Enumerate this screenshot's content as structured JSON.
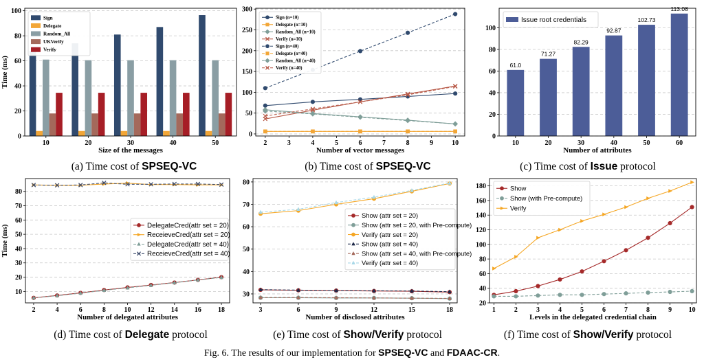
{
  "chart_data": [
    {
      "type": "bar",
      "categories": [
        "10",
        "20",
        "30",
        "40",
        "50"
      ],
      "series": [
        {
          "name": "Sign",
          "color": "#304a6e",
          "values": [
            68,
            74,
            81,
            87,
            96.5
          ]
        },
        {
          "name": "Delegate",
          "color": "#f2a637",
          "values": [
            4,
            4,
            4,
            4,
            4
          ]
        },
        {
          "name": "Random_All",
          "color": "#8a9ea4",
          "values": [
            61,
            60.5,
            60.5,
            60.5,
            60.5
          ]
        },
        {
          "name": "UKVerify",
          "color": "#a4695b",
          "values": [
            18,
            18,
            18,
            18,
            18
          ]
        },
        {
          "name": "Verify",
          "color": "#a61e26",
          "values": [
            34.5,
            34.5,
            34.5,
            34.5,
            34.5
          ]
        }
      ],
      "xlabel": "Size of the messages",
      "ylabel": "Time (ms)",
      "yticks": [
        0,
        20,
        40,
        60,
        80,
        100
      ],
      "ylim": [
        0,
        102
      ],
      "grid": true,
      "legend": "top-left"
    },
    {
      "type": "line",
      "x": [
        2,
        4,
        6,
        8,
        10
      ],
      "series": [
        {
          "name": "Sign (n=10)",
          "color": "#304a6e",
          "marker": "circle",
          "dash": false,
          "values": [
            68,
            77,
            83,
            90,
            97
          ]
        },
        {
          "name": "Delegate (n=10)",
          "color": "#f2a637",
          "marker": "square",
          "dash": false,
          "values": [
            6,
            6,
            6,
            6,
            6
          ]
        },
        {
          "name": "Random_All (n=10)",
          "color": "#7f9e98",
          "marker": "diamond",
          "dash": false,
          "values": [
            58,
            49,
            41,
            33,
            24
          ]
        },
        {
          "name": "Verify (n=10)",
          "color": "#b85a48",
          "marker": "x",
          "dash": false,
          "values": [
            36,
            57,
            77,
            96,
            115
          ]
        },
        {
          "name": "Sign (n=40)",
          "color": "#304a6e",
          "marker": "circle",
          "dash": true,
          "values": [
            110,
            154,
            199,
            243,
            288
          ]
        },
        {
          "name": "Delegate (n=40)",
          "color": "#f2a637",
          "marker": "square",
          "dash": true,
          "values": [
            6,
            6,
            6,
            6,
            6
          ]
        },
        {
          "name": "Random_All (n=40)",
          "color": "#7f9e98",
          "marker": "diamond",
          "dash": true,
          "values": [
            55,
            48,
            40,
            32,
            24
          ]
        },
        {
          "name": "Verify (n=40)",
          "color": "#b85a48",
          "marker": "x",
          "dash": true,
          "values": [
            43,
            60,
            77,
            94,
            114
          ]
        }
      ],
      "xticks": [
        2,
        3,
        4,
        5,
        6,
        7,
        8,
        9,
        10
      ],
      "yticks": [
        0,
        50,
        100,
        150,
        200,
        250,
        300
      ],
      "xlim": [
        1.6,
        10.4
      ],
      "ylim": [
        -5,
        302
      ],
      "xlabel": "Number of vector messages",
      "ylabel": "",
      "grid": true,
      "legend": "top-left"
    },
    {
      "type": "bar",
      "categories": [
        "10",
        "20",
        "30",
        "40",
        "50",
        "60"
      ],
      "series": [
        {
          "name": "Issue root credentials",
          "color": "#4c5d98",
          "values": [
            61.0,
            71.27,
            82.29,
            92.87,
            102.73,
            113.08
          ]
        }
      ],
      "data_labels": [
        "61.0",
        "71.27",
        "82.29",
        "92.87",
        "102.73",
        "113.08"
      ],
      "xlabel": "Number of attributes",
      "ylabel": "",
      "yticks": [
        0,
        20,
        40,
        60,
        80,
        100
      ],
      "ylim": [
        0,
        118
      ],
      "grid": true,
      "legend": "top-left"
    },
    {
      "type": "line",
      "x": [
        2,
        4,
        6,
        8,
        10,
        12,
        14,
        16,
        18
      ],
      "series": [
        {
          "name": "DelegateCred(attr set = 20)",
          "color": "#a52a2a",
          "marker": "circle",
          "dash": false,
          "values": [
            5.5,
            7.2,
            9,
            11,
            12.8,
            14.5,
            16.2,
            18.1,
            20
          ]
        },
        {
          "name": "ReceieveCred(attr set = 20)",
          "color": "#f5a623",
          "marker": "triangle-right",
          "dash": false,
          "values": [
            84.5,
            84.3,
            84.3,
            85.2,
            85.8,
            84.8,
            84.8,
            84.6,
            84.6
          ]
        },
        {
          "name": "DelegateCred(attr set = 40)",
          "color": "#7f9e98",
          "marker": "triangle-up",
          "dash": true,
          "values": [
            5.5,
            7,
            8.8,
            10.8,
            12.5,
            14.3,
            16.1,
            18,
            19.8
          ]
        },
        {
          "name": "ReceieveCred(attr set = 40)",
          "color": "#3b4a6b",
          "marker": "x",
          "dash": true,
          "values": [
            84.5,
            84.3,
            84.5,
            86,
            85,
            85,
            85.2,
            85.2,
            84.8
          ]
        }
      ],
      "xticks": [
        2,
        4,
        6,
        8,
        10,
        12,
        14,
        16,
        18
      ],
      "yticks": [
        10,
        20,
        30,
        40,
        50,
        60,
        70,
        80
      ],
      "xlim": [
        1.3,
        18.7
      ],
      "ylim": [
        2,
        89
      ],
      "xlabel": "Number of delegated attributes",
      "ylabel": "Time (ms)",
      "grid": true,
      "legend": "center-right"
    },
    {
      "type": "line",
      "x": [
        3,
        6,
        9,
        12,
        15,
        18
      ],
      "series": [
        {
          "name": "Show (attr set = 20)",
          "color": "#a52a2a",
          "marker": "circle",
          "dash": false,
          "values": [
            31.8,
            31.6,
            31.5,
            31.3,
            31.2,
            30.8
          ]
        },
        {
          "name": "Show (attr set = 20, with Pre-compute)",
          "color": "#7f9e98",
          "marker": "circle",
          "dash": false,
          "values": [
            28.3,
            28.3,
            28.2,
            28.2,
            28.1,
            27.9
          ]
        },
        {
          "name": "Verify (attr set = 20)",
          "color": "#f5a623",
          "marker": "circle",
          "dash": false,
          "values": [
            65.8,
            67.2,
            70,
            72.5,
            75.8,
            79.3
          ]
        },
        {
          "name": "Show (attr set = 40)",
          "color": "#1f2a4a",
          "marker": "triangle-up",
          "dash": true,
          "values": [
            31.9,
            31.7,
            31.5,
            31.4,
            31.3,
            31
          ]
        },
        {
          "name": "Show (attr set = 40, with Pre-compute)",
          "color": "#a4695b",
          "marker": "triangle-up",
          "dash": true,
          "values": [
            28.4,
            28.4,
            28.3,
            28.2,
            28.1,
            28
          ]
        },
        {
          "name": "Verify (attr set = 40)",
          "color": "#a8d8e8",
          "marker": "triangle-up",
          "dash": true,
          "values": [
            66.5,
            67.8,
            70.8,
            73.2,
            76.2,
            79.5
          ]
        }
      ],
      "xticks": [
        3,
        6,
        9,
        12,
        15,
        18
      ],
      "yticks": [
        30,
        40,
        50,
        60,
        70,
        80
      ],
      "xlim": [
        2.4,
        18.6
      ],
      "ylim": [
        26,
        81.5
      ],
      "xlabel": "Number of disclosed attributes",
      "ylabel": "",
      "grid": true,
      "legend": "center-right"
    },
    {
      "type": "line",
      "x": [
        1,
        2,
        3,
        4,
        5,
        6,
        7,
        8,
        9,
        10
      ],
      "series": [
        {
          "name": "Show",
          "color": "#a52a2a",
          "marker": "circle",
          "dash": false,
          "values": [
            31,
            36,
            43,
            52,
            63,
            77,
            92,
            109,
            129,
            151
          ]
        },
        {
          "name": "Show (with Pre-compute)",
          "color": "#7f9e98",
          "marker": "circle",
          "dash": true,
          "values": [
            29,
            29,
            30,
            31,
            31,
            32,
            33,
            34,
            35,
            36
          ]
        },
        {
          "name": "Verify",
          "color": "#f5a623",
          "marker": "triangle-right",
          "dash": false,
          "values": [
            67,
            83,
            109,
            120,
            132,
            141,
            151,
            163,
            173,
            185
          ]
        }
      ],
      "xticks": [
        1,
        2,
        3,
        4,
        5,
        6,
        7,
        8,
        9,
        10
      ],
      "yticks": [
        20,
        40,
        60,
        80,
        100,
        120,
        140,
        160,
        180
      ],
      "xlim": [
        0.8,
        10.2
      ],
      "ylim": [
        20,
        190
      ],
      "xlabel": "Levels in the delegated credential chain",
      "ylabel": "",
      "grid": true,
      "legend": "top-left"
    }
  ],
  "captions": [
    {
      "pre": "(a) Time cost of ",
      "bold": "SPSEQ-VC",
      "post": ""
    },
    {
      "pre": "(b) Time cost of ",
      "bold": "SPSEQ-VC",
      "post": ""
    },
    {
      "pre": "(c) Time cost of ",
      "bold": "Issue",
      "post": " protocol"
    },
    {
      "pre": "(d) Time cost of ",
      "bold": "Delegate",
      "post": " protocol"
    },
    {
      "pre": "(e) Time cost of ",
      "bold": "Show/Verify",
      "post": " protocol"
    },
    {
      "pre": "(f) Time cost of ",
      "bold": "Show/Verify",
      "post": " protocol"
    }
  ],
  "figure_caption": {
    "pre": "Fig. 6.  The results of our implementation for ",
    "b1": "SPSEQ-VC",
    "mid": " and ",
    "b2": "FDAAC-CR",
    "post": "."
  }
}
